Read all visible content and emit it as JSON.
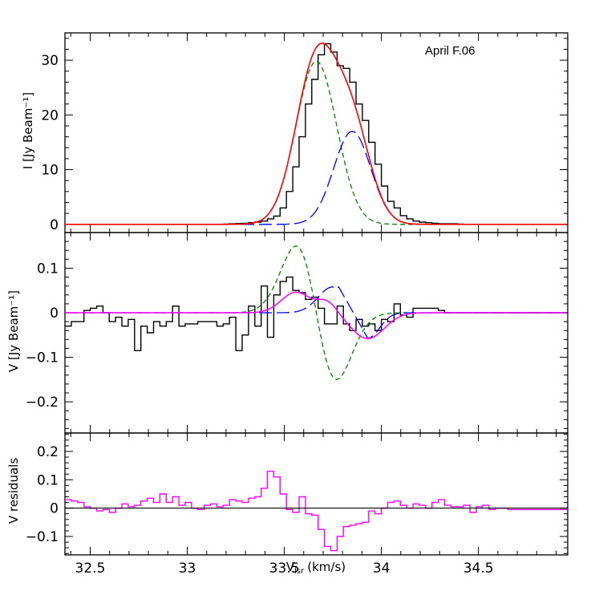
{
  "chart_data": [
    {
      "type": "line",
      "panel": "stokes-I",
      "ylabel": "I [Jy Beam⁻¹]",
      "xlim": [
        32.37,
        34.96
      ],
      "ylim": [
        -1.5,
        35
      ],
      "yticks_major": [
        0,
        10,
        20,
        30
      ],
      "ytick_labels": [
        "0",
        "10",
        "20",
        "30"
      ],
      "annotation": "April F.06",
      "colors": {
        "data": "#000000",
        "fit": "#ff0000",
        "comp1": "#008000",
        "comp2": "#0000ff"
      },
      "gaussians": {
        "comp1": {
          "amplitude": 29.8,
          "center": 33.665,
          "sigma": 0.105
        },
        "comp2": {
          "amplitude": 17.0,
          "center": 33.85,
          "sigma": 0.095
        }
      },
      "series": [
        {
          "kind": "histogram",
          "bin_width": 0.0326,
          "x_start": 32.37,
          "values": [
            0,
            0,
            0,
            0,
            0,
            0,
            0,
            0,
            0,
            0,
            0,
            0,
            0,
            0,
            0,
            0,
            0,
            0,
            0,
            0,
            0,
            0,
            0,
            0,
            0,
            0.05,
            0.1,
            0.15,
            0.2,
            0.3,
            0.4,
            0.6,
            1.0,
            1.5,
            3.0,
            6.0,
            10.5,
            16.0,
            22.0,
            26.5,
            31.0,
            33.0,
            31.5,
            29.0,
            28.5,
            26.0,
            22.0,
            19.0,
            15.0,
            11.0,
            7.0,
            4.2,
            3.0,
            1.6,
            1.0,
            0.6,
            0.4,
            0.3,
            0.2,
            0.1,
            0.1,
            0.1,
            0.05,
            0,
            0,
            0,
            0,
            0,
            0,
            0,
            0,
            0,
            0,
            0,
            0,
            0,
            0,
            0,
            0,
            0
          ]
        }
      ]
    },
    {
      "type": "line",
      "panel": "stokes-V",
      "ylabel": "V [Jy Beam⁻¹]",
      "xlim": [
        32.37,
        34.96
      ],
      "ylim": [
        -0.27,
        0.18
      ],
      "yticks_major": [
        -0.2,
        -0.1,
        0,
        0.1
      ],
      "ytick_labels": [
        "−0.2",
        "−0.1",
        "0",
        "0.1"
      ],
      "colors": {
        "data": "#000000",
        "fit": "#ff00ff",
        "comp1": "#008000",
        "comp2": "#0000ff"
      },
      "series": [
        {
          "kind": "histogram",
          "bin_width": 0.0326,
          "x_start": 32.37,
          "values": [
            -0.03,
            -0.02,
            -0.02,
            0.005,
            0.01,
            0.015,
            0,
            -0.02,
            -0.01,
            -0.03,
            -0.015,
            -0.085,
            -0.03,
            -0.045,
            -0.02,
            -0.03,
            -0.02,
            0.015,
            -0.03,
            -0.025,
            -0.025,
            -0.02,
            -0.02,
            -0.02,
            -0.03,
            -0.025,
            -0.01,
            -0.085,
            -0.05,
            0.015,
            -0.03,
            0.06,
            -0.055,
            0.04,
            0.07,
            0.08,
            0.05,
            0.045,
            0.03,
            0.035,
            0.01,
            -0.025,
            -0.025,
            0.015,
            -0.025,
            -0.04,
            -0.015,
            -0.03,
            -0.025,
            -0.04,
            -0.015,
            -0.02,
            0.02,
            -0.005,
            -0.01,
            0.01,
            0.01,
            0.01,
            0.01,
            0.005,
            0.0
          ]
        },
        {
          "kind": "line",
          "name": "",
          "values": []
        }
      ]
    },
    {
      "type": "line",
      "panel": "V-residuals",
      "ylabel": "V residuals",
      "xlabel": "Vₗₛᵣ (km/s)",
      "xlabel_main": "V",
      "xlabel_sub": "lsr",
      "xlabel_unit": "(km/s)",
      "xlim": [
        32.37,
        34.96
      ],
      "ylim": [
        -0.165,
        0.265
      ],
      "yticks_major": [
        -0.1,
        0,
        0.1,
        0.2
      ],
      "ytick_labels": [
        "−0.1",
        "0",
        "0.1",
        "0.2"
      ],
      "xticks_major": [
        32.5,
        33,
        33.5,
        34,
        34.5
      ],
      "xtick_labels": [
        "32.5",
        "33",
        "33.5",
        "34",
        "34.5"
      ],
      "colors": {
        "data": "#ff00ff",
        "zero_line": "#000000"
      },
      "series": [
        {
          "kind": "histogram",
          "bin_width": 0.0326,
          "x_start": 32.37,
          "values": [
            0.03,
            0.025,
            0.02,
            0.005,
            0.0,
            -0.01,
            -0.005,
            -0.015,
            0.0,
            0.015,
            0.005,
            0.01,
            0.025,
            0.035,
            0.02,
            0.05,
            0.02,
            0.04,
            0.01,
            0.02,
            0.0,
            -0.005,
            0.01,
            0.015,
            0.005,
            0.01,
            0.03,
            0.025,
            0.02,
            0.035,
            0.04,
            0.07,
            0.13,
            0.11,
            0.05,
            -0.005,
            -0.015,
            0.04,
            -0.02,
            -0.025,
            -0.075,
            -0.135,
            -0.15,
            -0.1,
            -0.065,
            -0.06,
            -0.055,
            -0.05,
            -0.01,
            -0.02,
            0.0,
            0.02,
            0.025,
            0.01,
            0.0,
            0.015,
            0.01,
            0.0,
            0.02,
            0.03,
            0.01,
            0.005,
            0.005,
            0.01,
            -0.015,
            0.005,
            0.01,
            -0.005,
            0.0,
            0.0,
            -0.005
          ]
        }
      ]
    }
  ]
}
